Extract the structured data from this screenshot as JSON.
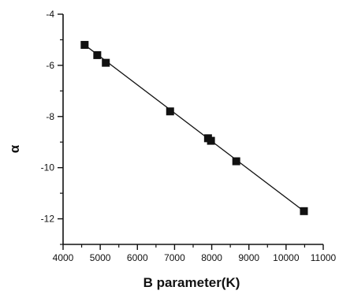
{
  "chart_data": {
    "type": "scatter",
    "title": "",
    "xlabel": "B parameter(K)",
    "ylabel": "α",
    "xlim": [
      4000,
      11000
    ],
    "ylim": [
      -13,
      -4
    ],
    "x_ticks": [
      4000,
      5000,
      6000,
      7000,
      8000,
      9000,
      10000,
      11000
    ],
    "x_tick_labels": [
      "4000",
      "5000",
      "6000",
      "7000",
      "8000",
      "9000",
      "10000",
      "11000"
    ],
    "y_ticks": [
      -4,
      -6,
      -8,
      -10,
      -12
    ],
    "y_tick_labels": [
      "-4",
      "-6",
      "-8",
      "-10",
      "-12"
    ],
    "grid": false,
    "legend": "none",
    "series": [
      {
        "marker": "filled-square",
        "color": "#111111",
        "points": [
          {
            "x": 4580,
            "y": -5.2
          },
          {
            "x": 4920,
            "y": -5.6
          },
          {
            "x": 5150,
            "y": -5.9
          },
          {
            "x": 6880,
            "y": -7.8
          },
          {
            "x": 7900,
            "y": -8.85
          },
          {
            "x": 7980,
            "y": -8.95
          },
          {
            "x": 8660,
            "y": -9.75
          },
          {
            "x": 10480,
            "y": -11.7
          }
        ]
      }
    ],
    "fit_line": {
      "x": [
        4580,
        10480
      ],
      "y": [
        -5.2,
        -11.7
      ],
      "color": "#111111"
    }
  }
}
